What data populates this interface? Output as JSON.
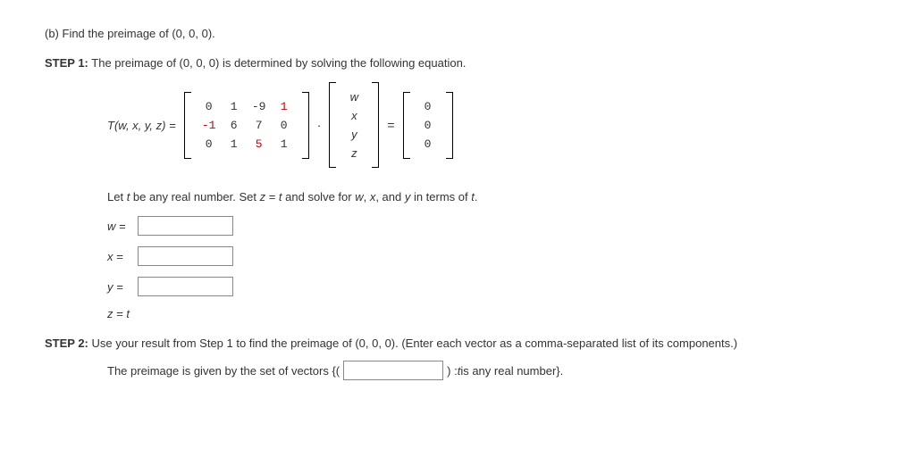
{
  "part": "(b) Find the preimage of (0, 0, 0).",
  "step1": {
    "label": "STEP 1:",
    "text": "The preimage of (0, 0, 0) is determined by solving the following equation."
  },
  "equation": {
    "lhs": "T(w, x, y, z) =",
    "matrixA": {
      "rows": [
        [
          "0",
          "1",
          "-9",
          "1"
        ],
        [
          "-1",
          "6",
          "7",
          "0"
        ],
        [
          "0",
          "1",
          "5",
          "1"
        ]
      ],
      "redCells": [
        [
          0,
          3
        ],
        [
          1,
          0
        ],
        [
          2,
          2
        ]
      ]
    },
    "vec": [
      "w",
      "x",
      "y",
      "z"
    ],
    "dot": "·",
    "eq": "=",
    "rhs": [
      "0",
      "0",
      "0"
    ]
  },
  "instruction": "Let t be any real number. Set z = t and solve for w, x, and y in terms of t.",
  "varfields": [
    {
      "label": "w ="
    },
    {
      "label": "x ="
    },
    {
      "label": "y ="
    }
  ],
  "zt": "z = t",
  "step2": {
    "label": "STEP 2:",
    "text": "Use your result from Step 1 to find the preimage of (0, 0, 0). (Enter each vector as a comma-separated list of its components.)"
  },
  "preimage": {
    "pre": "The preimage is given by the set of vectors {(",
    "post1": ") : ",
    "tspan": "t",
    "post2": " is any real number}."
  },
  "style": {
    "redColor": "#c00",
    "boxBorder": "#888",
    "fontSize": 13
  }
}
